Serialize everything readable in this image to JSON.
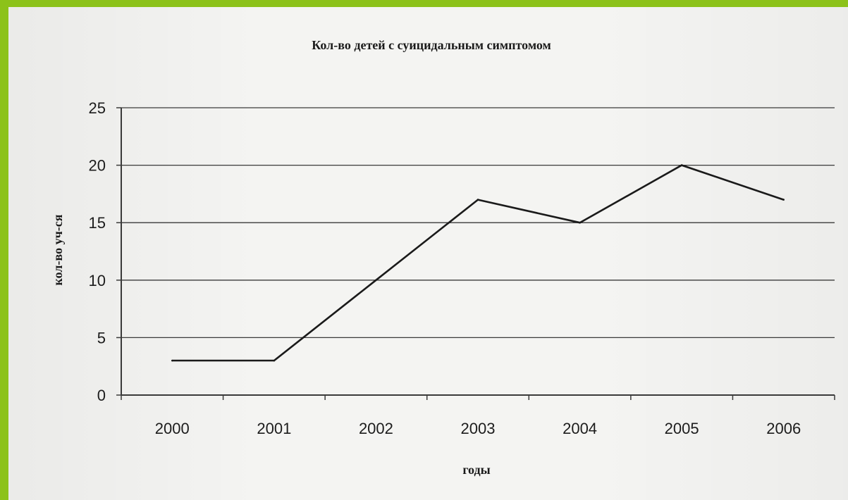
{
  "chart_data": {
    "type": "line",
    "title": "Кол-во детей с суицидальным симптомом",
    "xlabel": "годы",
    "ylabel": "кол-во уч-ся",
    "categories": [
      "2000",
      "2001",
      "2002",
      "2003",
      "2004",
      "2005",
      "2006"
    ],
    "series": [
      {
        "values": [
          3,
          3,
          10,
          17,
          15,
          20,
          17
        ]
      }
    ],
    "ylim": [
      0,
      25
    ],
    "yticks": [
      "0",
      "5",
      "10",
      "15",
      "20",
      "25"
    ],
    "grid": "horizontal",
    "legend": "none"
  },
  "colors": {
    "frame": "#8cc21a",
    "paper": "#f4f4f2",
    "line": "#1a1a1a",
    "grid": "#3a3a3a"
  }
}
